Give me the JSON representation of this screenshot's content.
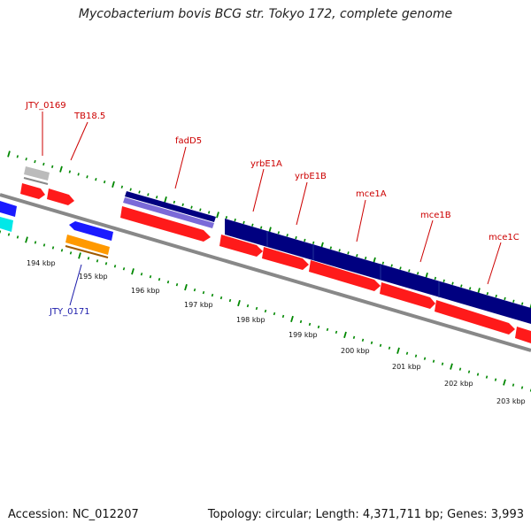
{
  "title": "Mycobacterium bovis BCG str. Tokyo 172, complete genome",
  "accession_text": "Accession: NC_012207",
  "summary_text": "Topology: circular; Length: 4,371,711 bp; Genes: 3,993",
  "colors": {
    "forward_cds": "#ff1a1a",
    "reverse_cds": "#1a1aff",
    "orange_feature": "#ff9900",
    "operon_navy": "#000080",
    "purple_feature": "#7a6ad8",
    "gray_feature": "#bbbbbb",
    "cyan_feature": "#00e8e8",
    "backbone": "#888888",
    "tick_green": "#008800",
    "label_red": "#cc0000",
    "label_blue": "#1a1aaa"
  },
  "gene_labels": [
    {
      "text": "JTY_0169",
      "strand": "forward"
    },
    {
      "text": "TB18.5",
      "strand": "forward"
    },
    {
      "text": "fadD5",
      "strand": "forward"
    },
    {
      "text": "yrbE1A",
      "strand": "forward"
    },
    {
      "text": "yrbE1B",
      "strand": "forward"
    },
    {
      "text": "mce1A",
      "strand": "forward"
    },
    {
      "text": "mce1B",
      "strand": "forward"
    },
    {
      "text": "mce1C",
      "strand": "forward"
    },
    {
      "text": "JTY_0171",
      "strand": "reverse"
    }
  ],
  "kbp_labels": [
    "194 kbp",
    "195 kbp",
    "196 kbp",
    "197 kbp",
    "198 kbp",
    "199 kbp",
    "200 kbp",
    "201 kbp",
    "202 kbp",
    "203 kbp"
  ]
}
